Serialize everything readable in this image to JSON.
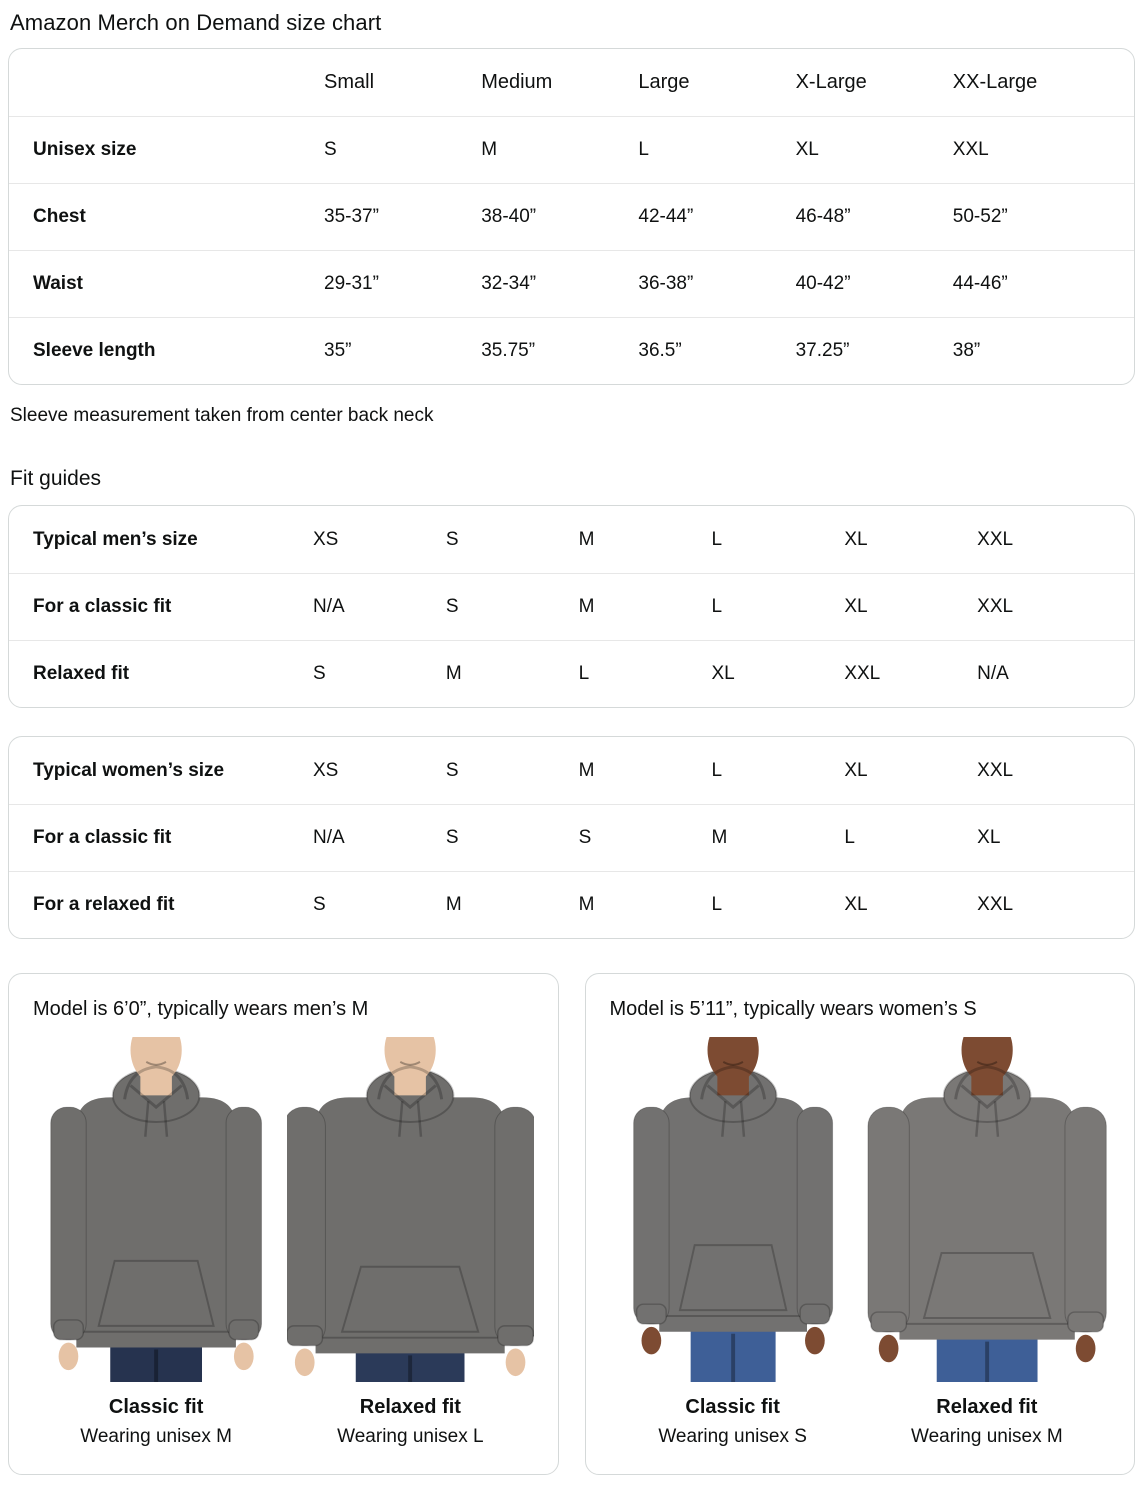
{
  "page_title": "Amazon Merch on Demand size chart",
  "size_chart": {
    "columns": [
      "Small",
      "Medium",
      "Large",
      "X-Large",
      "XX-Large"
    ],
    "rows": [
      {
        "label": "Unisex size",
        "values": [
          "S",
          "M",
          "L",
          "XL",
          "XXL"
        ]
      },
      {
        "label": "Chest",
        "values": [
          "35-37”",
          "38-40”",
          "42-44”",
          "46-48”",
          "50-52”"
        ]
      },
      {
        "label": "Waist",
        "values": [
          "29-31”",
          "32-34”",
          "36-38”",
          "40-42”",
          "44-46”"
        ]
      },
      {
        "label": "Sleeve length",
        "values": [
          "35”",
          "35.75”",
          "36.5”",
          "37.25”",
          "38”"
        ]
      }
    ]
  },
  "sleeve_note": "Sleeve measurement taken from center back neck",
  "fit_guides": {
    "heading": "Fit guides",
    "tables": [
      {
        "name": "mens-fit-guide",
        "rows": [
          {
            "label": "Typical men’s size",
            "values": [
              "XS",
              "S",
              "M",
              "L",
              "XL",
              "XXL"
            ]
          },
          {
            "label": "For a classic fit",
            "values": [
              "N/A",
              "S",
              "M",
              "L",
              "XL",
              "XXL"
            ]
          },
          {
            "label": "Relaxed fit",
            "values": [
              "S",
              "M",
              "L",
              "XL",
              "XXL",
              "N/A"
            ]
          }
        ]
      },
      {
        "name": "womens-fit-guide",
        "rows": [
          {
            "label": "Typical women’s size",
            "values": [
              "XS",
              "S",
              "M",
              "L",
              "XL",
              "XXL"
            ]
          },
          {
            "label": "For a classic fit",
            "values": [
              "N/A",
              "S",
              "S",
              "M",
              "L",
              "XL"
            ]
          },
          {
            "label": "For a relaxed fit",
            "values": [
              "S",
              "M",
              "M",
              "L",
              "XL",
              "XXL"
            ]
          }
        ]
      }
    ]
  },
  "model_cards": [
    {
      "caption": "Model is 6’0”, typically wears men’s M",
      "figures": [
        {
          "fit_label": "Classic fit",
          "wearing_label": "Wearing unisex M",
          "photo": {
            "fit": "classic",
            "build": "male",
            "skin": "#e6c3a5",
            "hoodie": "#6f6e6c",
            "jeans": "#26334f"
          }
        },
        {
          "fit_label": "Relaxed fit",
          "wearing_label": "Wearing unisex L",
          "photo": {
            "fit": "relaxed",
            "build": "male",
            "skin": "#e6c3a5",
            "hoodie": "#6f6e6c",
            "jeans": "#2b3a59"
          }
        }
      ]
    },
    {
      "caption": "Model is 5’11”, typically wears women’s S",
      "figures": [
        {
          "fit_label": "Classic fit",
          "wearing_label": "Wearing unisex S",
          "photo": {
            "fit": "classic",
            "build": "female",
            "skin": "#7d4b32",
            "hoodie": "#727170",
            "jeans": "#3e5f97"
          }
        },
        {
          "fit_label": "Relaxed fit",
          "wearing_label": "Wearing unisex M",
          "photo": {
            "fit": "relaxed",
            "build": "female",
            "skin": "#7d4b32",
            "hoodie": "#7a7876",
            "jeans": "#3e5f97"
          }
        }
      ]
    }
  ],
  "colors": {
    "card_border": "#d5d9d9",
    "row_divider": "#e7e7e7",
    "text": "#0f1111"
  }
}
